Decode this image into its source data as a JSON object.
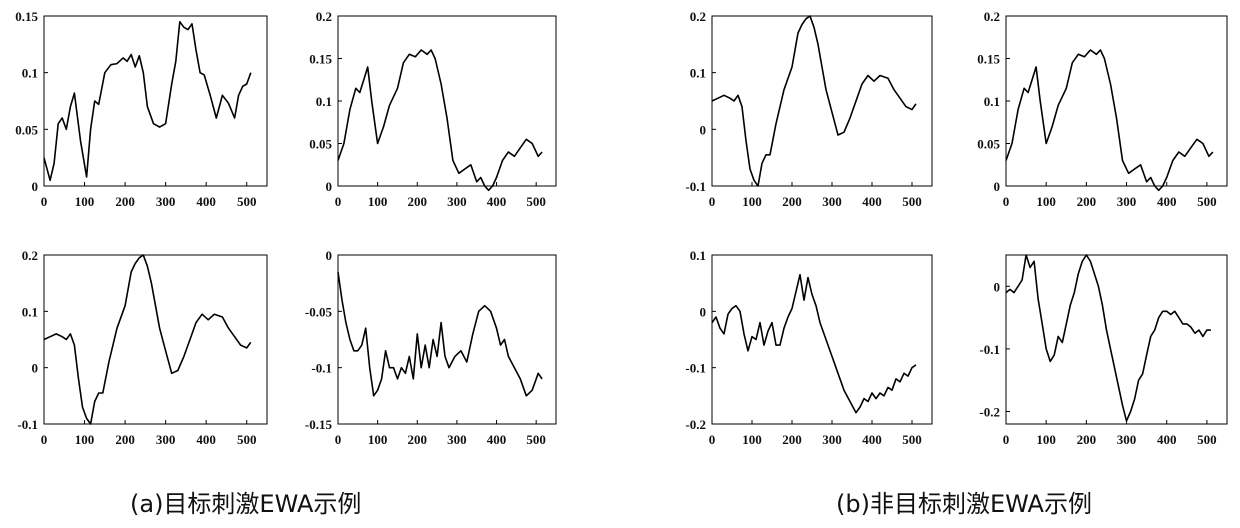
{
  "captions": {
    "a": "(a)目标刺激EWA示例",
    "b": "(b)非目标刺激EWA示例"
  },
  "colors": {
    "line": "#000000",
    "axes": "#000000"
  },
  "chart_data": [
    {
      "id": "a1",
      "type": "line",
      "group": "a",
      "xlim": [
        0,
        550
      ],
      "ylim": [
        0,
        0.15
      ],
      "xticks": [
        0,
        100,
        200,
        300,
        400,
        500
      ],
      "xtick_labels": [
        "0",
        "100",
        "200",
        "300",
        "400",
        "500"
      ],
      "yticks": [
        0,
        0.05,
        0.1,
        0.15
      ],
      "ytick_labels": [
        "0",
        "0.05",
        "0.1",
        "0.15"
      ],
      "x": [
        0,
        15,
        25,
        35,
        45,
        55,
        65,
        75,
        90,
        105,
        115,
        125,
        135,
        150,
        165,
        180,
        195,
        205,
        215,
        225,
        235,
        245,
        255,
        270,
        285,
        300,
        315,
        325,
        335,
        345,
        355,
        365,
        375,
        385,
        395,
        410,
        425,
        440,
        455,
        470,
        480,
        490,
        500,
        510
      ],
      "y": [
        0.025,
        0.005,
        0.02,
        0.055,
        0.06,
        0.05,
        0.07,
        0.082,
        0.04,
        0.008,
        0.05,
        0.075,
        0.072,
        0.1,
        0.107,
        0.108,
        0.113,
        0.11,
        0.116,
        0.105,
        0.115,
        0.1,
        0.07,
        0.055,
        0.052,
        0.055,
        0.09,
        0.11,
        0.145,
        0.14,
        0.138,
        0.143,
        0.12,
        0.1,
        0.098,
        0.08,
        0.06,
        0.08,
        0.073,
        0.06,
        0.08,
        0.088,
        0.09,
        0.1
      ]
    },
    {
      "id": "a2",
      "type": "line",
      "group": "a",
      "xlim": [
        0,
        550
      ],
      "ylim": [
        0,
        0.2
      ],
      "xticks": [
        0,
        100,
        200,
        300,
        400,
        500
      ],
      "xtick_labels": [
        "0",
        "100",
        "200",
        "300",
        "400",
        "500"
      ],
      "yticks": [
        0,
        0.05,
        0.1,
        0.15,
        0.2
      ],
      "ytick_labels": [
        "0",
        "0.05",
        "0.1",
        "0.15",
        "0.2"
      ],
      "x": [
        0,
        15,
        30,
        45,
        55,
        65,
        75,
        85,
        100,
        115,
        130,
        150,
        165,
        180,
        195,
        210,
        225,
        235,
        245,
        260,
        275,
        290,
        305,
        320,
        335,
        350,
        360,
        370,
        380,
        390,
        400,
        415,
        430,
        445,
        460,
        475,
        490,
        505,
        515
      ],
      "y": [
        0.03,
        0.05,
        0.09,
        0.115,
        0.11,
        0.125,
        0.14,
        0.1,
        0.05,
        0.07,
        0.095,
        0.115,
        0.145,
        0.155,
        0.152,
        0.16,
        0.155,
        0.16,
        0.15,
        0.12,
        0.08,
        0.03,
        0.015,
        0.02,
        0.025,
        0.005,
        0.01,
        0,
        -0.005,
        0,
        0.01,
        0.03,
        0.04,
        0.035,
        0.045,
        0.055,
        0.05,
        0.035,
        0.04
      ]
    },
    {
      "id": "a3",
      "type": "line",
      "group": "a",
      "xlim": [
        0,
        550
      ],
      "ylim": [
        -0.1,
        0.2
      ],
      "xticks": [
        0,
        100,
        200,
        300,
        400,
        500
      ],
      "xtick_labels": [
        "0",
        "100",
        "200",
        "300",
        "400",
        "500"
      ],
      "yticks": [
        -0.1,
        0,
        0.1,
        0.2
      ],
      "ytick_labels": [
        "-0.1",
        "0",
        "0.1",
        "0.2"
      ],
      "x": [
        0,
        15,
        30,
        45,
        55,
        65,
        75,
        85,
        95,
        105,
        115,
        125,
        135,
        145,
        160,
        180,
        200,
        215,
        225,
        235,
        245,
        255,
        265,
        275,
        285,
        300,
        315,
        330,
        345,
        360,
        375,
        390,
        405,
        420,
        440,
        455,
        470,
        485,
        500,
        510
      ],
      "y": [
        0.05,
        0.055,
        0.06,
        0.055,
        0.05,
        0.06,
        0.04,
        -0.02,
        -0.07,
        -0.09,
        -0.1,
        -0.06,
        -0.045,
        -0.045,
        0.01,
        0.07,
        0.11,
        0.17,
        0.185,
        0.195,
        0.2,
        0.18,
        0.15,
        0.11,
        0.07,
        0.03,
        -0.01,
        -0.005,
        0.02,
        0.05,
        0.08,
        0.095,
        0.085,
        0.095,
        0.09,
        0.07,
        0.055,
        0.04,
        0.035,
        0.045
      ]
    },
    {
      "id": "a4",
      "type": "line",
      "group": "a",
      "xlim": [
        0,
        550
      ],
      "ylim": [
        -0.15,
        0
      ],
      "xticks": [
        0,
        100,
        200,
        300,
        400,
        500
      ],
      "xtick_labels": [
        "0",
        "100",
        "200",
        "300",
        "400",
        "500"
      ],
      "yticks": [
        -0.15,
        -0.1,
        -0.05,
        0
      ],
      "ytick_labels": [
        "-0.15",
        "-0.1",
        "-0.05",
        "0"
      ],
      "x": [
        0,
        10,
        20,
        30,
        40,
        50,
        60,
        70,
        80,
        90,
        100,
        110,
        120,
        130,
        140,
        150,
        160,
        170,
        180,
        190,
        200,
        210,
        220,
        230,
        240,
        250,
        260,
        270,
        280,
        295,
        310,
        325,
        340,
        355,
        370,
        385,
        400,
        410,
        420,
        430,
        445,
        460,
        475,
        490,
        505,
        515
      ],
      "y": [
        -0.015,
        -0.04,
        -0.06,
        -0.075,
        -0.085,
        -0.085,
        -0.08,
        -0.065,
        -0.1,
        -0.125,
        -0.12,
        -0.11,
        -0.085,
        -0.1,
        -0.1,
        -0.11,
        -0.1,
        -0.105,
        -0.09,
        -0.11,
        -0.07,
        -0.1,
        -0.08,
        -0.1,
        -0.075,
        -0.09,
        -0.06,
        -0.09,
        -0.1,
        -0.09,
        -0.085,
        -0.095,
        -0.07,
        -0.05,
        -0.045,
        -0.05,
        -0.065,
        -0.08,
        -0.075,
        -0.09,
        -0.1,
        -0.11,
        -0.125,
        -0.12,
        -0.105,
        -0.11
      ]
    },
    {
      "id": "b1",
      "type": "line",
      "group": "b",
      "xlim": [
        0,
        550
      ],
      "ylim": [
        -0.1,
        0.2
      ],
      "xticks": [
        0,
        100,
        200,
        300,
        400,
        500
      ],
      "xtick_labels": [
        "0",
        "100",
        "200",
        "300",
        "400",
        "500"
      ],
      "yticks": [
        -0.1,
        0,
        0.1,
        0.2
      ],
      "ytick_labels": [
        "-0.1",
        "0",
        "0.1",
        "0.2"
      ],
      "x": [
        0,
        15,
        30,
        45,
        55,
        65,
        75,
        85,
        95,
        105,
        115,
        125,
        135,
        145,
        160,
        180,
        200,
        215,
        225,
        235,
        245,
        255,
        265,
        275,
        285,
        300,
        315,
        330,
        345,
        360,
        375,
        390,
        405,
        420,
        440,
        455,
        470,
        485,
        500,
        510
      ],
      "y": [
        0.05,
        0.055,
        0.06,
        0.055,
        0.05,
        0.06,
        0.04,
        -0.02,
        -0.07,
        -0.09,
        -0.1,
        -0.06,
        -0.045,
        -0.045,
        0.01,
        0.07,
        0.11,
        0.17,
        0.185,
        0.195,
        0.2,
        0.18,
        0.15,
        0.11,
        0.07,
        0.03,
        -0.01,
        -0.005,
        0.02,
        0.05,
        0.08,
        0.095,
        0.085,
        0.095,
        0.09,
        0.07,
        0.055,
        0.04,
        0.035,
        0.045
      ]
    },
    {
      "id": "b2",
      "type": "line",
      "group": "b",
      "xlim": [
        0,
        550
      ],
      "ylim": [
        0,
        0.2
      ],
      "xticks": [
        0,
        100,
        200,
        300,
        400,
        500
      ],
      "xtick_labels": [
        "0",
        "100",
        "200",
        "300",
        "400",
        "500"
      ],
      "yticks": [
        0,
        0.05,
        0.1,
        0.15,
        0.2
      ],
      "ytick_labels": [
        "0",
        "0.05",
        "0.1",
        "0.15",
        "0.2"
      ],
      "x": [
        0,
        15,
        30,
        45,
        55,
        65,
        75,
        85,
        100,
        115,
        130,
        150,
        165,
        180,
        195,
        210,
        225,
        235,
        245,
        260,
        275,
        290,
        305,
        320,
        335,
        350,
        360,
        370,
        380,
        390,
        400,
        415,
        430,
        445,
        460,
        475,
        490,
        505,
        515
      ],
      "y": [
        0.03,
        0.05,
        0.09,
        0.115,
        0.11,
        0.125,
        0.14,
        0.1,
        0.05,
        0.07,
        0.095,
        0.115,
        0.145,
        0.155,
        0.152,
        0.16,
        0.155,
        0.16,
        0.15,
        0.12,
        0.08,
        0.03,
        0.015,
        0.02,
        0.025,
        0.005,
        0.01,
        0,
        -0.005,
        0,
        0.01,
        0.03,
        0.04,
        0.035,
        0.045,
        0.055,
        0.05,
        0.035,
        0.04
      ]
    },
    {
      "id": "b3",
      "type": "line",
      "group": "b",
      "xlim": [
        0,
        550
      ],
      "ylim": [
        -0.2,
        0.1
      ],
      "xticks": [
        0,
        100,
        200,
        300,
        400,
        500
      ],
      "xtick_labels": [
        "0",
        "100",
        "200",
        "300",
        "400",
        "500"
      ],
      "yticks": [
        -0.2,
        -0.1,
        0,
        0.1
      ],
      "ytick_labels": [
        "-0.2",
        "-0.1",
        "0",
        "0.1"
      ],
      "x": [
        0,
        10,
        20,
        30,
        40,
        50,
        60,
        70,
        80,
        90,
        100,
        110,
        120,
        130,
        140,
        150,
        160,
        170,
        180,
        190,
        200,
        210,
        220,
        230,
        240,
        250,
        260,
        270,
        285,
        300,
        315,
        330,
        345,
        360,
        370,
        380,
        390,
        400,
        410,
        420,
        430,
        440,
        450,
        460,
        470,
        480,
        490,
        500,
        510
      ],
      "y": [
        -0.02,
        -0.01,
        -0.03,
        -0.04,
        -0.005,
        0.005,
        0.01,
        0,
        -0.04,
        -0.07,
        -0.045,
        -0.05,
        -0.02,
        -0.06,
        -0.035,
        -0.02,
        -0.06,
        -0.06,
        -0.03,
        -0.01,
        0.005,
        0.035,
        0.065,
        0.02,
        0.06,
        0.03,
        0.01,
        -0.02,
        -0.05,
        -0.08,
        -0.11,
        -0.14,
        -0.16,
        -0.18,
        -0.17,
        -0.155,
        -0.16,
        -0.145,
        -0.155,
        -0.145,
        -0.15,
        -0.135,
        -0.14,
        -0.12,
        -0.125,
        -0.11,
        -0.115,
        -0.1,
        -0.095
      ]
    },
    {
      "id": "b4",
      "type": "line",
      "group": "b",
      "xlim": [
        0,
        550
      ],
      "ylim": [
        -0.22,
        0.05
      ],
      "xticks": [
        0,
        100,
        200,
        300,
        400,
        500
      ],
      "xtick_labels": [
        "0",
        "100",
        "200",
        "300",
        "400",
        "500"
      ],
      "yticks": [
        -0.2,
        -0.1,
        0
      ],
      "ytick_labels": [
        "-0.2",
        "-0.1",
        "0"
      ],
      "x": [
        0,
        10,
        20,
        30,
        40,
        50,
        60,
        70,
        80,
        90,
        100,
        110,
        120,
        130,
        140,
        150,
        160,
        170,
        180,
        190,
        200,
        210,
        220,
        230,
        240,
        250,
        260,
        270,
        280,
        290,
        300,
        310,
        320,
        330,
        340,
        350,
        360,
        370,
        380,
        390,
        400,
        410,
        420,
        430,
        440,
        450,
        460,
        470,
        480,
        490,
        500,
        510
      ],
      "y": [
        -0.01,
        -0.005,
        -0.01,
        0,
        0.01,
        0.05,
        0.03,
        0.04,
        -0.02,
        -0.06,
        -0.1,
        -0.12,
        -0.11,
        -0.08,
        -0.09,
        -0.06,
        -0.03,
        -0.01,
        0.02,
        0.04,
        0.05,
        0.04,
        0.02,
        0,
        -0.03,
        -0.07,
        -0.1,
        -0.13,
        -0.16,
        -0.19,
        -0.215,
        -0.2,
        -0.18,
        -0.15,
        -0.14,
        -0.11,
        -0.08,
        -0.07,
        -0.05,
        -0.04,
        -0.04,
        -0.045,
        -0.04,
        -0.05,
        -0.06,
        -0.06,
        -0.065,
        -0.075,
        -0.07,
        -0.08,
        -0.07,
        -0.07
      ]
    }
  ]
}
